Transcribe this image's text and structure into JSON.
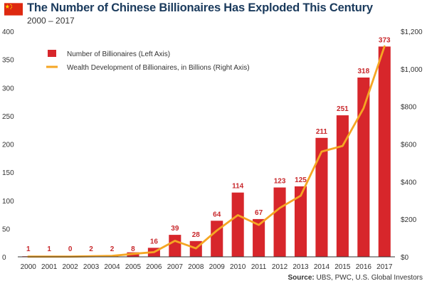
{
  "header": {
    "title": "The Number of Chinese Billionaires Has Exploded This Century",
    "subtitle": "2000 – 2017",
    "flag_icon": "china-flag-icon"
  },
  "colors": {
    "bar": "#d7262b",
    "line": "#f5a623",
    "flag_red": "#de2910",
    "flag_star": "#ffde00",
    "title": "#1a3a5c"
  },
  "chart_data": {
    "type": "bar",
    "categories": [
      "2000",
      "2001",
      "2002",
      "2003",
      "2004",
      "2005",
      "2006",
      "2007",
      "2008",
      "2009",
      "2010",
      "2011",
      "2012",
      "2013",
      "2014",
      "2015",
      "2016",
      "2017"
    ],
    "series": [
      {
        "name": "Number of Billionaires (Left Axis)",
        "type": "bar",
        "axis": "left",
        "values": [
          1,
          1,
          0,
          2,
          2,
          8,
          16,
          39,
          28,
          64,
          114,
          67,
          123,
          125,
          211,
          251,
          318,
          373
        ]
      },
      {
        "name": "Wealth Development of Billionaires, in Billions (Right Axis)",
        "type": "line",
        "axis": "right",
        "values": [
          1,
          1,
          1,
          3,
          5,
          16,
          25,
          85,
          45,
          140,
          222,
          170,
          260,
          325,
          560,
          590,
          790,
          1120
        ]
      }
    ],
    "y_left": {
      "range": [
        0,
        400
      ],
      "ticks": [
        "0",
        "50",
        "100",
        "150",
        "200",
        "250",
        "300",
        "350",
        "400"
      ]
    },
    "y_right": {
      "range": [
        0,
        1200
      ],
      "ticks": [
        "$0",
        "$200",
        "$400",
        "$600",
        "$800",
        "$1,000",
        "$1,200"
      ]
    },
    "legend": "top-left",
    "grid": false
  },
  "footer": {
    "source_label": "Source:",
    "source_text": "UBS, PWC, U.S. Global Investors"
  }
}
